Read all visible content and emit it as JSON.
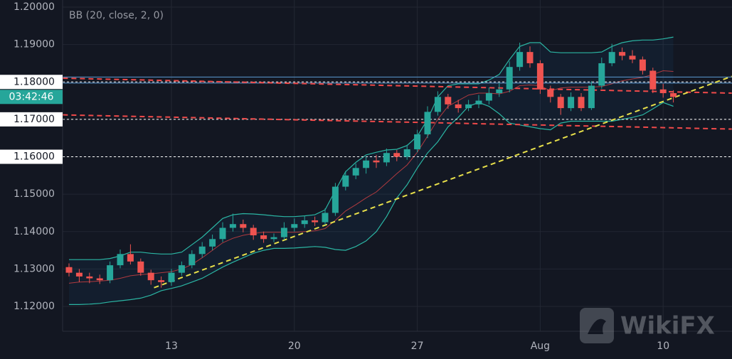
{
  "chart_data": {
    "type": "candlestick",
    "indicator_label": "BB (20, close, 2, 0)",
    "watermark": "WikiFX",
    "countdown": "03:42:46",
    "categories": [
      null,
      null,
      null,
      null,
      null,
      null,
      null,
      null,
      null,
      null,
      "13",
      null,
      null,
      null,
      null,
      null,
      null,
      null,
      null,
      null,
      null,
      null,
      "20",
      null,
      null,
      null,
      null,
      null,
      null,
      null,
      null,
      null,
      null,
      null,
      "27",
      null,
      null,
      null,
      null,
      null,
      null,
      null,
      null,
      null,
      null,
      null,
      "Aug",
      null,
      null,
      null,
      null,
      null,
      null,
      null,
      null,
      null,
      null,
      null,
      "10",
      null
    ],
    "open": [
      1.1305,
      1.129,
      1.128,
      1.1275,
      1.127,
      1.131,
      1.134,
      1.132,
      1.129,
      1.127,
      1.1265,
      1.129,
      1.131,
      1.134,
      1.136,
      1.138,
      1.141,
      1.142,
      1.141,
      1.139,
      1.138,
      1.1385,
      1.141,
      1.142,
      1.143,
      1.1425,
      1.145,
      1.152,
      1.155,
      1.157,
      1.159,
      1.1585,
      1.161,
      1.16,
      1.162,
      1.166,
      1.172,
      1.176,
      1.174,
      1.173,
      1.174,
      1.175,
      1.177,
      1.178,
      1.184,
      1.188,
      1.185,
      1.178,
      1.176,
      1.173,
      1.176,
      1.173,
      1.179,
      1.185,
      1.188,
      1.187,
      1.186,
      1.183,
      1.178,
      1.177
    ],
    "high": [
      1.1315,
      1.13,
      1.129,
      1.1285,
      1.132,
      1.1352,
      1.1366,
      1.1328,
      1.1298,
      1.128,
      1.13,
      1.132,
      1.135,
      1.1372,
      1.1392,
      1.1425,
      1.1448,
      1.1432,
      1.1418,
      1.14,
      1.1395,
      1.1425,
      1.1435,
      1.1442,
      1.144,
      1.1462,
      1.153,
      1.1562,
      1.1582,
      1.16,
      1.1605,
      1.1622,
      1.1618,
      1.1632,
      1.1672,
      1.1735,
      1.1775,
      1.1768,
      1.1752,
      1.1752,
      1.1765,
      1.1785,
      1.1798,
      1.1855,
      1.1905,
      1.1895,
      1.1858,
      1.179,
      1.1768,
      1.1772,
      1.177,
      1.1802,
      1.1865,
      1.1902,
      1.1892,
      1.1885,
      1.1868,
      1.1838,
      1.1795,
      1.1778
    ],
    "low": [
      1.128,
      1.1265,
      1.1262,
      1.126,
      1.1262,
      1.1302,
      1.1312,
      1.1282,
      1.1258,
      1.125,
      1.1255,
      1.1282,
      1.1302,
      1.133,
      1.135,
      1.1372,
      1.14,
      1.1398,
      1.1378,
      1.137,
      1.1372,
      1.1378,
      1.14,
      1.141,
      1.1415,
      1.1418,
      1.1442,
      1.151,
      1.154,
      1.1555,
      1.157,
      1.1575,
      1.1588,
      1.1592,
      1.1612,
      1.165,
      1.171,
      1.1728,
      1.1718,
      1.1722,
      1.173,
      1.174,
      1.176,
      1.1772,
      1.183,
      1.1838,
      1.1768,
      1.1745,
      1.1712,
      1.1722,
      1.1722,
      1.1725,
      1.1782,
      1.1842,
      1.1858,
      1.185,
      1.182,
      1.177,
      1.1758,
      1.1745
    ],
    "close": [
      1.129,
      1.128,
      1.1275,
      1.127,
      1.131,
      1.134,
      1.132,
      1.129,
      1.127,
      1.1265,
      1.129,
      1.131,
      1.134,
      1.136,
      1.138,
      1.141,
      1.142,
      1.141,
      1.139,
      1.138,
      1.1385,
      1.141,
      1.142,
      1.143,
      1.1425,
      1.145,
      1.152,
      1.155,
      1.157,
      1.159,
      1.1585,
      1.161,
      1.16,
      1.162,
      1.166,
      1.172,
      1.176,
      1.174,
      1.173,
      1.174,
      1.175,
      1.177,
      1.178,
      1.184,
      1.188,
      1.185,
      1.178,
      1.176,
      1.173,
      1.176,
      1.173,
      1.179,
      1.185,
      1.188,
      1.187,
      1.186,
      1.183,
      1.178,
      1.177,
      1.176
    ],
    "up_color": "#26a69a",
    "down_color": "#ef5350",
    "bands": {
      "line_color": "#2bb5a3",
      "middle_color": "#b03a3f",
      "fill": "rgba(33,150,243,0.06)",
      "upper": [
        1.1325,
        1.1325,
        1.1325,
        1.1325,
        1.1328,
        1.1335,
        1.1345,
        1.1345,
        1.1342,
        1.134,
        1.134,
        1.1345,
        1.1365,
        1.1385,
        1.141,
        1.1435,
        1.1445,
        1.1448,
        1.1447,
        1.1445,
        1.1442,
        1.144,
        1.144,
        1.1442,
        1.1445,
        1.1458,
        1.151,
        1.156,
        1.1585,
        1.1605,
        1.1612,
        1.1618,
        1.162,
        1.163,
        1.1655,
        1.17,
        1.176,
        1.179,
        1.1795,
        1.1795,
        1.1795,
        1.1805,
        1.182,
        1.186,
        1.1895,
        1.1905,
        1.1905,
        1.188,
        1.1878,
        1.1878,
        1.1878,
        1.1878,
        1.188,
        1.1895,
        1.1905,
        1.191,
        1.1912,
        1.1912,
        1.1915,
        1.192
      ],
      "middle": [
        1.1262,
        1.1265,
        1.1266,
        1.1268,
        1.127,
        1.1275,
        1.1282,
        1.1285,
        1.1287,
        1.129,
        1.1293,
        1.13,
        1.1312,
        1.133,
        1.135,
        1.137,
        1.1382,
        1.139,
        1.1395,
        1.1398,
        1.1398,
        1.1398,
        1.1398,
        1.14,
        1.1402,
        1.1408,
        1.143,
        1.1455,
        1.1472,
        1.149,
        1.1506,
        1.153,
        1.1555,
        1.1578,
        1.1612,
        1.1655,
        1.17,
        1.1735,
        1.175,
        1.1765,
        1.177,
        1.177,
        1.1768,
        1.1775,
        1.179,
        1.1792,
        1.179,
        1.1776,
        1.1784,
        1.1786,
        1.1786,
        1.1786,
        1.1788,
        1.1795,
        1.1803,
        1.1808,
        1.1812,
        1.182,
        1.183,
        1.1828
      ],
      "lower": [
        1.1205,
        1.1205,
        1.1206,
        1.1208,
        1.1212,
        1.1215,
        1.1218,
        1.1222,
        1.123,
        1.1242,
        1.1248,
        1.1255,
        1.1265,
        1.1275,
        1.129,
        1.1305,
        1.1318,
        1.133,
        1.1342,
        1.135,
        1.1355,
        1.1355,
        1.1356,
        1.1358,
        1.136,
        1.1358,
        1.1352,
        1.135,
        1.136,
        1.1375,
        1.14,
        1.144,
        1.149,
        1.1525,
        1.157,
        1.161,
        1.164,
        1.168,
        1.1705,
        1.1735,
        1.1745,
        1.1735,
        1.1715,
        1.169,
        1.1685,
        1.168,
        1.1675,
        1.1672,
        1.169,
        1.1695,
        1.1695,
        1.1695,
        1.1695,
        1.1695,
        1.17,
        1.1705,
        1.1712,
        1.1728,
        1.1745,
        1.1735
      ]
    },
    "ylim": [
      1.11335,
      1.2019
    ],
    "yticks": [
      {
        "value": 1.12,
        "label": "1.12000"
      },
      {
        "value": 1.13,
        "label": "1.13000"
      },
      {
        "value": 1.14,
        "label": "1.14000"
      },
      {
        "value": 1.15,
        "label": "1.15000"
      },
      {
        "value": 1.16,
        "label": "1.16000"
      },
      {
        "value": 1.17,
        "label": "1.17000"
      },
      {
        "value": 1.18,
        "label": "1.18000"
      },
      {
        "value": 1.19,
        "label": "1.19000"
      },
      {
        "value": 1.2,
        "label": "1.20000"
      }
    ],
    "grid": true,
    "zone": {
      "values": [
        1.1797,
        1.1813
      ],
      "color": "#5b9bd5"
    },
    "hlines": [
      {
        "value": 1.18,
        "color": "#ffffff"
      },
      {
        "value": 1.17,
        "color": "#ffffff"
      },
      {
        "value": 1.16,
        "color": "#ffffff"
      }
    ],
    "trend_lines": [
      {
        "color": "#f04a4a",
        "points": [
          [
            -0.6,
            1.181
          ],
          [
            64.7,
            1.177
          ]
        ]
      },
      {
        "color": "#f04a4a",
        "points": [
          [
            -0.6,
            1.1712
          ],
          [
            64.7,
            1.1674
          ]
        ]
      },
      {
        "color": "#e8e04a",
        "points": [
          [
            8.3,
            1.125
          ],
          [
            64.7,
            1.1815
          ]
        ]
      }
    ]
  }
}
